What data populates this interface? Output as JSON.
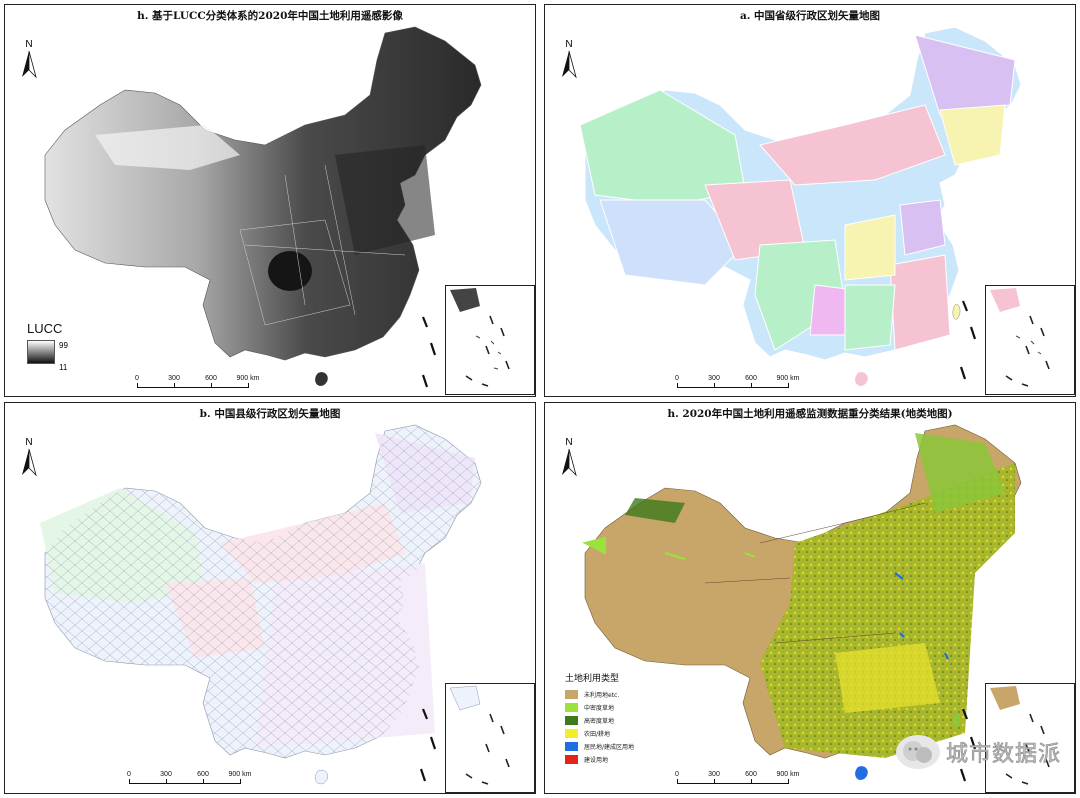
{
  "panels": {
    "top_left": {
      "title": "h. 基于LUCC分类体系的2020年中国土地利用遥感影像"
    },
    "top_right": {
      "title": "a. 中国省级行政区划矢量地图"
    },
    "bottom_left": {
      "title": "b. 中国县级行政区划矢量地图"
    },
    "bottom_right": {
      "title": "h. 2020年中国土地利用遥感监测数据重分类结果(地类地图)"
    }
  },
  "north_label": "N",
  "scale": {
    "labels": [
      "0",
      "300",
      "600",
      "900 km"
    ]
  },
  "lucc_legend": {
    "title": "LUCC",
    "max": "99",
    "min": "11"
  },
  "landuse_legend": {
    "title": "土地利用类型",
    "items": [
      {
        "label": "未利用地etc.",
        "color": "#c8a66a"
      },
      {
        "label": "中密度草地",
        "color": "#9be23c"
      },
      {
        "label": "高密度草地",
        "color": "#3d7a1a"
      },
      {
        "label": "农田/耕地",
        "color": "#f2ef2a"
      },
      {
        "label": "居民地/建成区用地",
        "color": "#1f6fe0"
      },
      {
        "label": "建设用地",
        "color": "#e3241b"
      }
    ]
  },
  "watermark": {
    "text": "城市数据派"
  },
  "colors": {
    "province_palette": [
      "#b7f0c8",
      "#f6c3d2",
      "#cfe1fa",
      "#f6c3d2",
      "#d8c0f2",
      "#f7f3b0",
      "#b7f0c8",
      "#c9e6fb",
      "#efb8f0"
    ],
    "county_line": "#9aa6b8"
  }
}
